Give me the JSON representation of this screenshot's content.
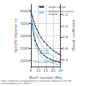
{
  "chart_data": {
    "type": "line",
    "xlabel": "Mach number (Ma)",
    "ylabel": "Specific impulse (s)",
    "y2label": "Thrust coefficient",
    "footnote": "Flight conditions corresponding to a dynamic pressure of 50 kPa\nstall temperature = 1500 K",
    "x": [
      5,
      6,
      7,
      8,
      9,
      10,
      12,
      14,
      16,
      18,
      20,
      22,
      24,
      25
    ],
    "series": [
      {
        "name": "Super-ramjet",
        "color": "#444444",
        "marker": "circle",
        "values": [
          5000,
          3900,
          3100,
          2600,
          2250,
          1980,
          1620,
          1380,
          1210,
          1090,
          990,
          910,
          850,
          820
        ]
      },
      {
        "name": "Oblique detonation\nengine",
        "color": "#77ccee",
        "values": [
          4600,
          3500,
          2750,
          2250,
          1900,
          1650,
          1300,
          1080,
          940,
          840,
          760,
          695,
          645,
          620
        ]
      },
      {
        "name": "Super-ramjet",
        "color": "#444444",
        "marker": "circle",
        "axis": "y2",
        "values": [
          1.27,
          1.17,
          1.08,
          1.0,
          0.94,
          0.88,
          0.79,
          0.72,
          0.66,
          0.61,
          0.57,
          0.53,
          0.5,
          0.48
        ]
      },
      {
        "name": "Oblique detonation\nengine",
        "color": "#77ccee",
        "axis": "y2",
        "values": [
          1.17,
          1.06,
          0.97,
          0.89,
          0.83,
          0.77,
          0.68,
          0.61,
          0.55,
          0.5,
          0.46,
          0.43,
          0.4,
          0.38
        ]
      }
    ],
    "xlim": [
      5,
      25
    ],
    "xticks": [
      5,
      10,
      15,
      20,
      25
    ],
    "ylim": [
      500,
      5500
    ],
    "yticks": [
      1000,
      2000,
      3000,
      4000,
      5000
    ],
    "y2lim": [
      0.28,
      1.38
    ],
    "y2ticks": [
      0.4,
      0.6,
      0.8,
      {
        "value": 1.0,
        "label": "1.0"
      },
      1.2
    ],
    "annotations": [
      {
        "text": "Specific\nimpulse",
        "x": 14,
        "y": 1700
      },
      {
        "text": "Thrust coefficient",
        "x": 14,
        "y": 900
      }
    ],
    "grid": true,
    "legend": "upper right"
  }
}
